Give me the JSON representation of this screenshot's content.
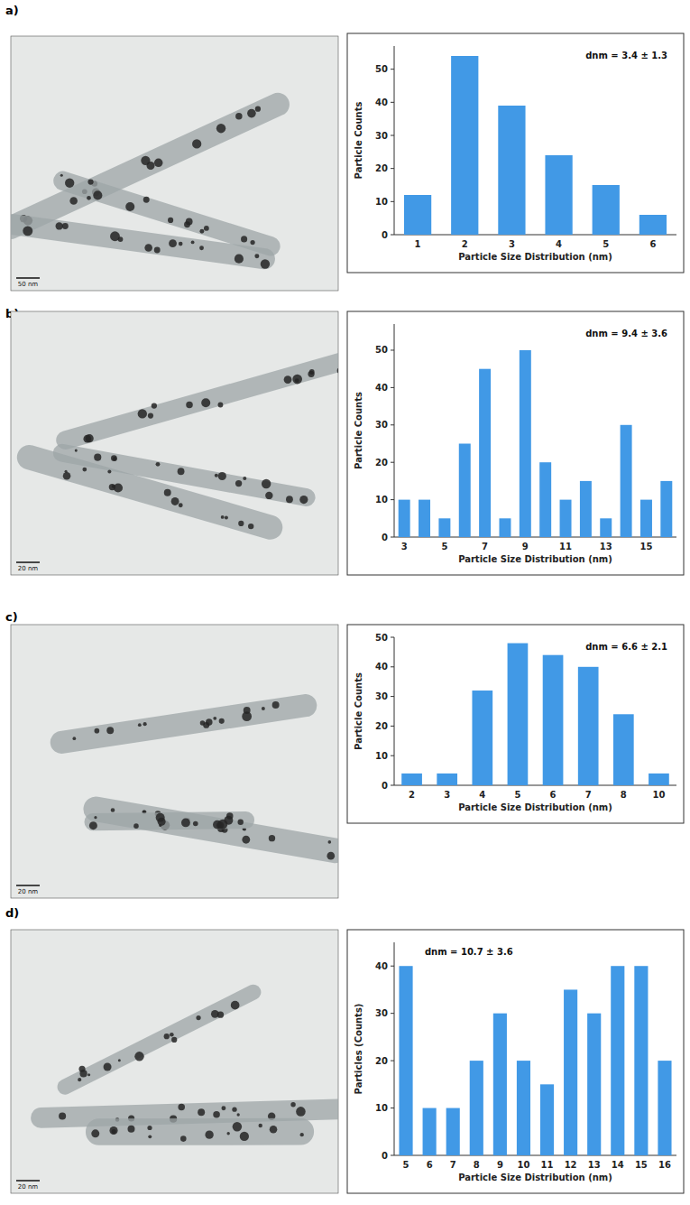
{
  "chart_data": [
    {
      "type": "bar",
      "panel": "a)",
      "scale_bar": "50 nm",
      "annotation": "dnm = 3.4 ± 1.3",
      "x_label": "Particle Size Distribution (nm)",
      "y_label": "Particle Counts",
      "categories": [
        "1",
        "2",
        "3",
        "4",
        "5",
        "6"
      ],
      "values": [
        12,
        54,
        39,
        24,
        15,
        6
      ],
      "color": "#4199e6",
      "ylim": [
        0,
        57
      ],
      "yticks": [
        0,
        10,
        20,
        30,
        40,
        50
      ],
      "grid": false
    },
    {
      "type": "bar",
      "panel": "b)",
      "scale_bar": "20 nm",
      "annotation": "dnm = 9.4 ± 3.6",
      "x_label": "Particle Size Distribution (nm)",
      "y_label": "Particle Counts",
      "categories": [
        "3",
        null,
        "5",
        null,
        "7",
        null,
        "9",
        null,
        "11",
        null,
        "13",
        null,
        "15",
        null
      ],
      "values": [
        10,
        10,
        5,
        25,
        45,
        5,
        50,
        20,
        10,
        15,
        5,
        30,
        10,
        15
      ],
      "color": "#4199e6",
      "ylim": [
        0,
        57
      ],
      "yticks": [
        0,
        10,
        20,
        30,
        40,
        50
      ],
      "grid": false
    },
    {
      "type": "bar",
      "panel": "c)",
      "scale_bar": "20 nm",
      "annotation": "dnm = 6.6 ± 2.1",
      "x_label": "Particle Size Distribution (nm)",
      "y_label": "Particle Counts",
      "categories": [
        "2",
        "3",
        "4",
        "5",
        "6",
        "7",
        "8",
        "10"
      ],
      "values": [
        4,
        4,
        32,
        48,
        44,
        40,
        24,
        4
      ],
      "color": "#4199e6",
      "ylim": [
        0,
        50
      ],
      "yticks": [
        0,
        10,
        20,
        30,
        40,
        50
      ],
      "grid": false
    },
    {
      "type": "bar",
      "panel": "d)",
      "scale_bar": "20 nm",
      "annotation": "dnm = 10.7 ± 3.6",
      "x_label": "Particle Size Distribution (nm)",
      "y_label": "Particles (Counts)",
      "categories": [
        "5",
        "6",
        "7",
        "8",
        "9",
        "10",
        "11",
        "12",
        "13",
        "14",
        "15",
        "16"
      ],
      "values": [
        40,
        10,
        10,
        20,
        30,
        20,
        15,
        35,
        30,
        40,
        40,
        20
      ],
      "color": "#4199e6",
      "ylim": [
        0,
        45
      ],
      "yticks": [
        0,
        10,
        20,
        30,
        40
      ],
      "grid": false
    }
  ]
}
